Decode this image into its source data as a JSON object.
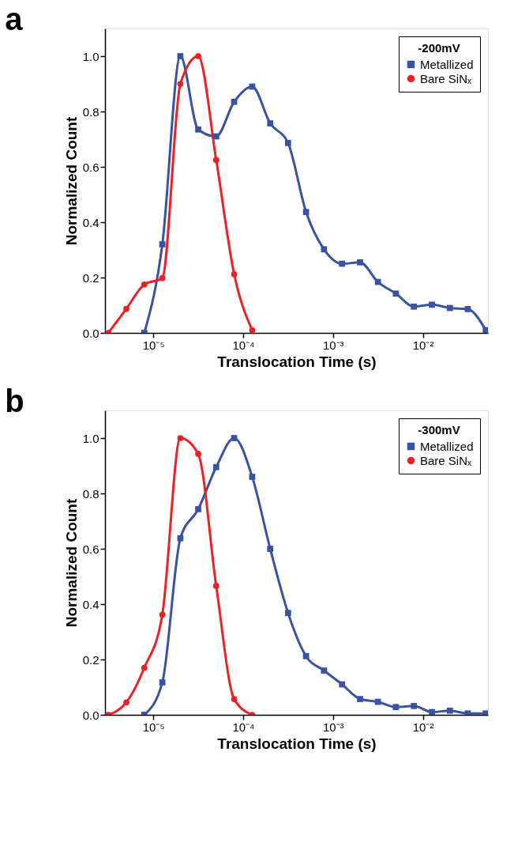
{
  "chart_data": [
    {
      "type": "line",
      "title": "a",
      "xlabel": "Translocation Time (s)",
      "ylabel": "Normalized Count",
      "legend_title": "-200mV",
      "legend": "top right",
      "log": "x",
      "grid": false,
      "xlim": [
        2.9e-06,
        0.053
      ],
      "ylim": [
        0,
        1.1
      ],
      "xticks": [
        {
          "value": 1e-05,
          "label": "10⁻⁵"
        },
        {
          "value": 0.0001,
          "label": "10⁻⁴"
        },
        {
          "value": 0.001,
          "label": "10⁻³"
        },
        {
          "value": 0.01,
          "label": "10⁻²"
        }
      ],
      "yticks": [
        {
          "value": 0,
          "label": "0.0"
        },
        {
          "value": 0.2,
          "label": "0.2"
        },
        {
          "value": 0.4,
          "label": "0.4"
        },
        {
          "value": 0.6,
          "label": "0.6"
        },
        {
          "value": 0.8,
          "label": "0.8"
        },
        {
          "value": 1.0,
          "label": "1.0"
        }
      ],
      "series": [
        {
          "name": "Metallized",
          "color": "#3953a4",
          "marker": "square",
          "x": [
            7.94e-06,
            1.26e-05,
            2e-05,
            3.16e-05,
            5.01e-05,
            7.94e-05,
            0.000126,
            0.0002,
            0.000316,
            0.000501,
            0.000794,
            0.00126,
            0.002,
            0.00316,
            0.00501,
            0.00794,
            0.0126,
            0.02,
            0.0316,
            0.0501
          ],
          "values": [
            0.0,
            0.32,
            1.0,
            0.735,
            0.71,
            0.835,
            0.89,
            0.757,
            0.686,
            0.437,
            0.302,
            0.25,
            0.255,
            0.184,
            0.142,
            0.095,
            0.102,
            0.09,
            0.086,
            0.01
          ]
        },
        {
          "name": "Bare SiNₓ",
          "color": "#ed2024",
          "marker": "circle",
          "x": [
            3.16e-06,
            5.01e-06,
            7.94e-06,
            1.26e-05,
            2e-05,
            3.16e-05,
            5.01e-05,
            7.94e-05,
            0.000126
          ],
          "values": [
            0.0,
            0.087,
            0.175,
            0.198,
            0.9,
            1.0,
            0.625,
            0.212,
            0.01
          ]
        }
      ]
    },
    {
      "type": "line",
      "title": "b",
      "xlabel": "Translocation Time (s)",
      "ylabel": "Normalized Count",
      "legend_title": "-300mV",
      "legend": "top right",
      "log": "x",
      "grid": false,
      "xlim": [
        2.9e-06,
        0.053
      ],
      "ylim": [
        0,
        1.1
      ],
      "xticks": [
        {
          "value": 1e-05,
          "label": "10⁻⁵"
        },
        {
          "value": 0.0001,
          "label": "10⁻⁴"
        },
        {
          "value": 0.001,
          "label": "10⁻³"
        },
        {
          "value": 0.01,
          "label": "10⁻²"
        }
      ],
      "yticks": [
        {
          "value": 0,
          "label": "0.0"
        },
        {
          "value": 0.2,
          "label": "0.2"
        },
        {
          "value": 0.4,
          "label": "0.4"
        },
        {
          "value": 0.6,
          "label": "0.6"
        },
        {
          "value": 0.8,
          "label": "0.8"
        },
        {
          "value": 1.0,
          "label": "1.0"
        }
      ],
      "series": [
        {
          "name": "Metallized",
          "color": "#3953a4",
          "marker": "square",
          "x": [
            7.94e-06,
            1.26e-05,
            2e-05,
            3.16e-05,
            5.01e-05,
            7.94e-05,
            0.000126,
            0.0002,
            0.000316,
            0.000501,
            0.000794,
            0.00126,
            0.002,
            0.00316,
            0.00501,
            0.00794,
            0.0126,
            0.02,
            0.0316,
            0.0501
          ],
          "values": [
            0.0,
            0.117,
            0.638,
            0.743,
            0.895,
            1.0,
            0.86,
            0.6,
            0.368,
            0.212,
            0.16,
            0.11,
            0.057,
            0.047,
            0.028,
            0.032,
            0.01,
            0.015,
            0.005,
            0.005
          ]
        },
        {
          "name": "Bare SiNₓ",
          "color": "#ed2024",
          "marker": "circle",
          "x": [
            3.16e-06,
            5.01e-06,
            7.94e-06,
            1.26e-05,
            2e-05,
            3.16e-05,
            5.01e-05,
            7.94e-05,
            0.000126
          ],
          "values": [
            0.0,
            0.045,
            0.17,
            0.362,
            1.0,
            0.943,
            0.466,
            0.057,
            0.0
          ]
        }
      ]
    }
  ]
}
